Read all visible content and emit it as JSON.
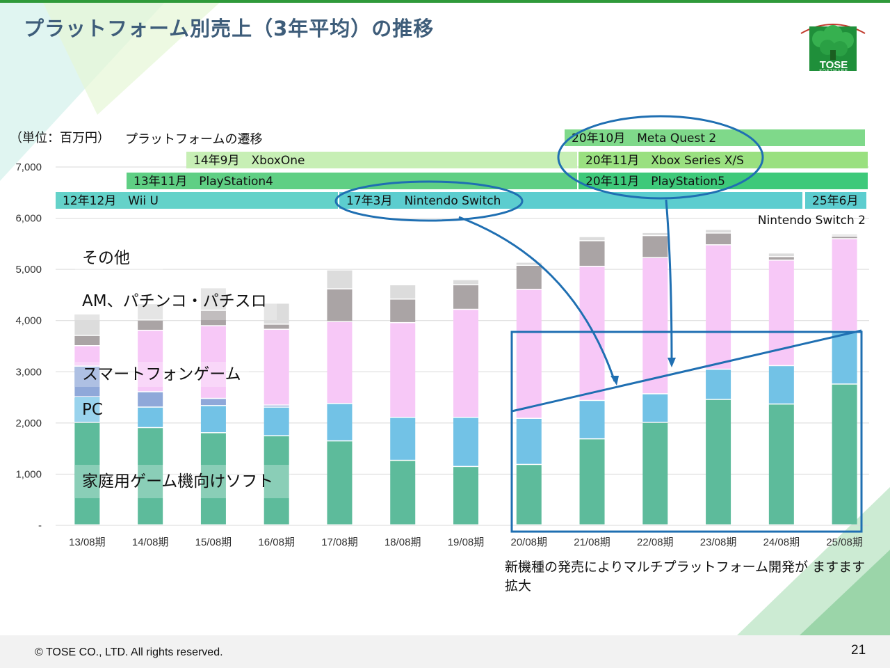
{
  "title": "プラットフォーム別売上（3年平均）の推移",
  "logo": {
    "name": "TOSE",
    "sub": "SOFTWARE"
  },
  "unit_label": "（単位：百万円）",
  "transition_label": "プラットフォームの遷移",
  "platform_bands": [
    {
      "label": "20年10月　Meta Quest 2",
      "color": "#7fd98a"
    },
    {
      "label": "14年9月　XboxOne",
      "color": "#c7efb5"
    },
    {
      "label": "20年11月　Xbox Series X/S",
      "color": "#9ae080"
    },
    {
      "label": "13年11月　PlayStation4",
      "color": "#5fcf84"
    },
    {
      "label": "20年11月　PlayStation5",
      "color": "#3ec97a"
    },
    {
      "label": "12年12月　Wii U",
      "color": "#64d2c9"
    },
    {
      "label": "17年3月　Nintendo Switch",
      "color": "#5ccdcf"
    },
    {
      "label": "25年6月",
      "color": "#5ccdcf"
    }
  ],
  "switch2_label": "Nintendo Switch 2",
  "chart_data": {
    "type": "bar",
    "stacked": true,
    "categories": [
      "13/08期",
      "14/08期",
      "15/08期",
      "16/08期",
      "17/08期",
      "18/08期",
      "19/08期",
      "20/08期",
      "21/08期",
      "22/08期",
      "23/08期",
      "24/08期",
      "25/08期"
    ],
    "series": [
      {
        "name": "家庭用ゲーム機向けソフト",
        "color": "#5dbb9b",
        "values": [
          2000,
          1900,
          1800,
          1740,
          1640,
          1260,
          1140,
          1180,
          1680,
          2000,
          2450,
          2360,
          2750
        ]
      },
      {
        "name": "PC",
        "color": "#72c2e6",
        "values": [
          500,
          400,
          530,
          560,
          730,
          840,
          960,
          900,
          750,
          560,
          590,
          750,
          1040
        ]
      },
      {
        "name": "",
        "color": "#8fa8d9",
        "values": [
          600,
          300,
          140,
          40,
          0,
          0,
          0,
          0,
          0,
          0,
          0,
          0,
          0
        ]
      },
      {
        "name": "スマートフォンゲーム",
        "color": "#f7c8f7",
        "values": [
          400,
          1200,
          1420,
          1480,
          1600,
          1850,
          2110,
          2520,
          2620,
          2660,
          2430,
          2060,
          1800
        ]
      },
      {
        "name": "AM、パチンコ・パチスロ",
        "color": "#aaa4a5",
        "values": [
          200,
          200,
          300,
          100,
          640,
          460,
          480,
          470,
          500,
          430,
          230,
          70,
          50
        ]
      },
      {
        "name": "その他",
        "color": "#dcdcdc",
        "values": [
          420,
          320,
          440,
          410,
          370,
          280,
          100,
          60,
          80,
          60,
          70,
          70,
          40
        ]
      }
    ],
    "y_ticks": [
      "-",
      "1,000",
      "2,000",
      "3,000",
      "4,000",
      "5,000",
      "6,000",
      "7,000"
    ],
    "ylim": [
      0,
      7000
    ]
  },
  "note": "新機種の発売によりマルチプラットフォーム開発が ますます拡大",
  "copyright": "© TOSE CO., LTD. All rights reserved.",
  "page_number": "21"
}
